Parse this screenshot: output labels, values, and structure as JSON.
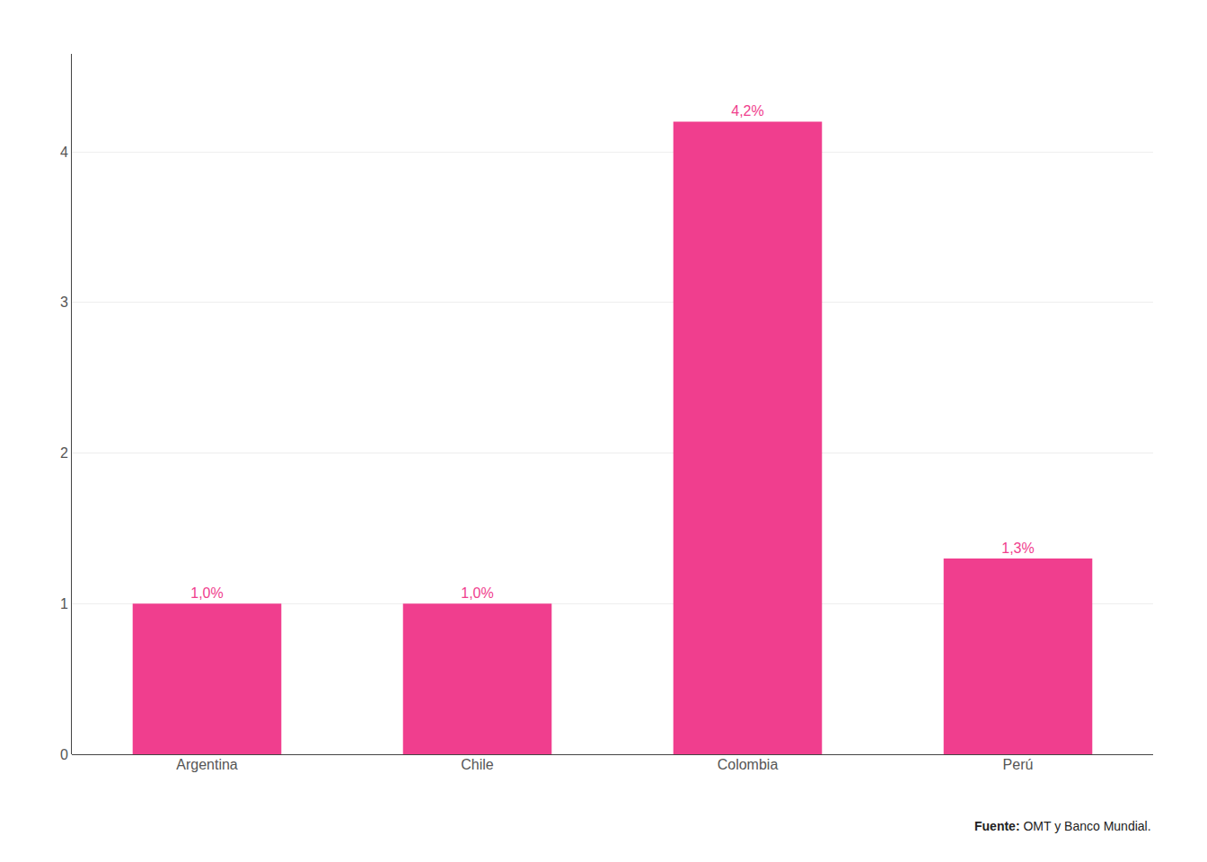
{
  "chart_data": {
    "type": "bar",
    "categories": [
      "Argentina",
      "Chile",
      "Colombia",
      "Perú"
    ],
    "values": [
      1.0,
      1.0,
      4.2,
      1.3
    ],
    "value_labels": [
      "1,0%",
      "1,0%",
      "4,2%",
      "1,3%"
    ],
    "data_labels": true,
    "color": "#F03E8E",
    "ylim": [
      0,
      4.65
    ],
    "yticks": [
      0,
      1,
      2,
      3,
      4
    ],
    "grid": true,
    "annotations": [
      "Fuente:",
      "OMT y Banco Mundial."
    ]
  }
}
